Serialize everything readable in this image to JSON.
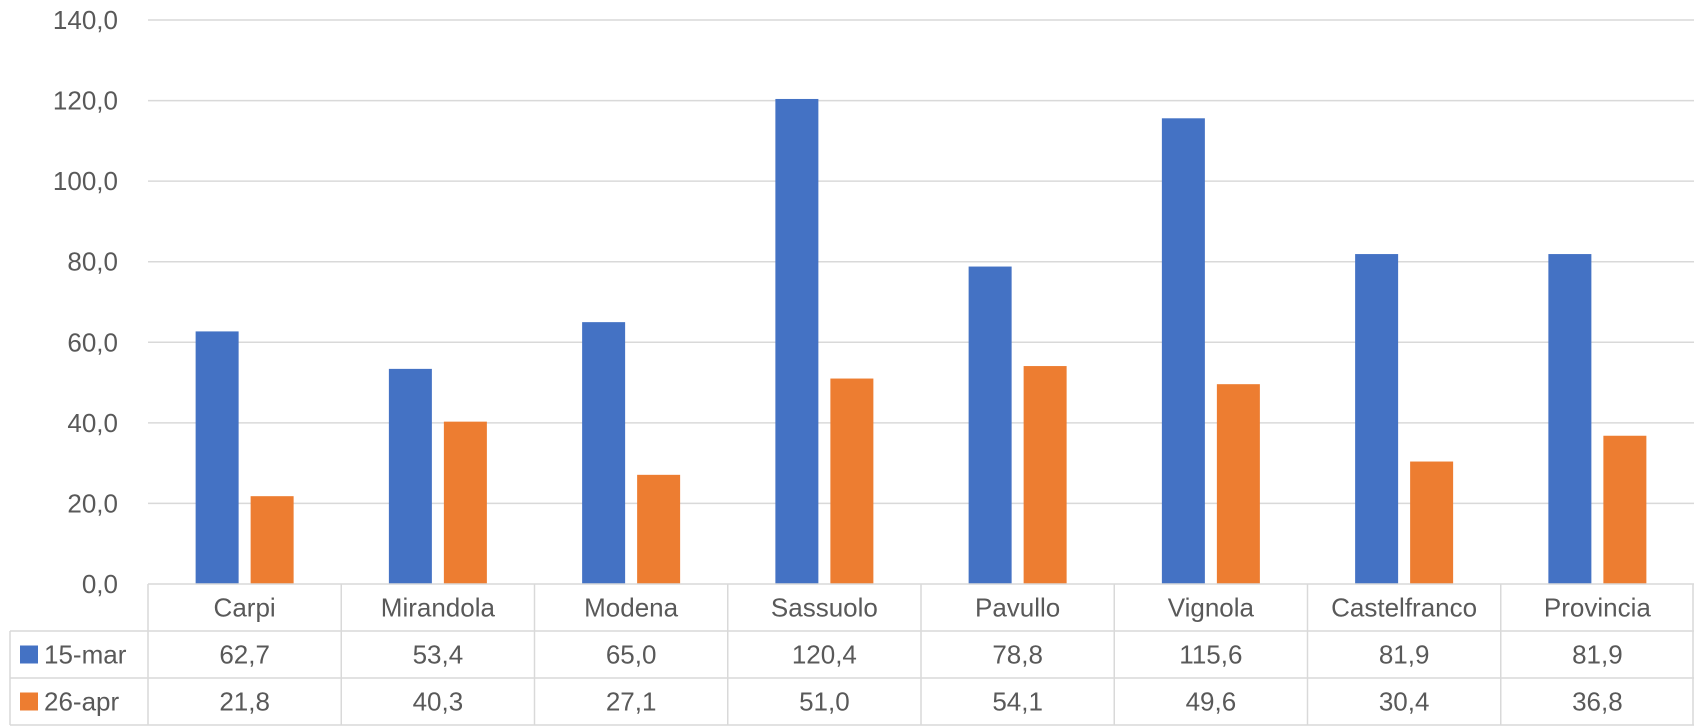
{
  "chart_data": {
    "type": "bar",
    "categories": [
      "Carpi",
      "Mirandola",
      "Modena",
      "Sassuolo",
      "Pavullo",
      "Vignola",
      "Castelfranco",
      "Provincia"
    ],
    "series": [
      {
        "name": "15-mar",
        "color": "#4472c4",
        "values": [
          62.7,
          53.4,
          65.0,
          120.4,
          78.8,
          115.6,
          81.9,
          81.9
        ],
        "labels": [
          "62,7",
          "53,4",
          "65,0",
          "120,4",
          "78,8",
          "115,6",
          "81,9",
          "81,9"
        ]
      },
      {
        "name": "26-apr",
        "color": "#ed7d31",
        "values": [
          21.8,
          40.3,
          27.1,
          51.0,
          54.1,
          49.6,
          30.4,
          36.8
        ],
        "labels": [
          "21,8",
          "40,3",
          "27,1",
          "51,0",
          "54,1",
          "49,6",
          "30,4",
          "36,8"
        ]
      }
    ],
    "ylim": [
      0,
      140
    ],
    "yticks": [
      0,
      20,
      40,
      60,
      80,
      100,
      120,
      140
    ],
    "ytick_labels": [
      "0,0",
      "20,0",
      "40,0",
      "60,0",
      "80,0",
      "100,0",
      "120,0",
      "140,0"
    ],
    "grid": true,
    "legend": "data-table"
  }
}
